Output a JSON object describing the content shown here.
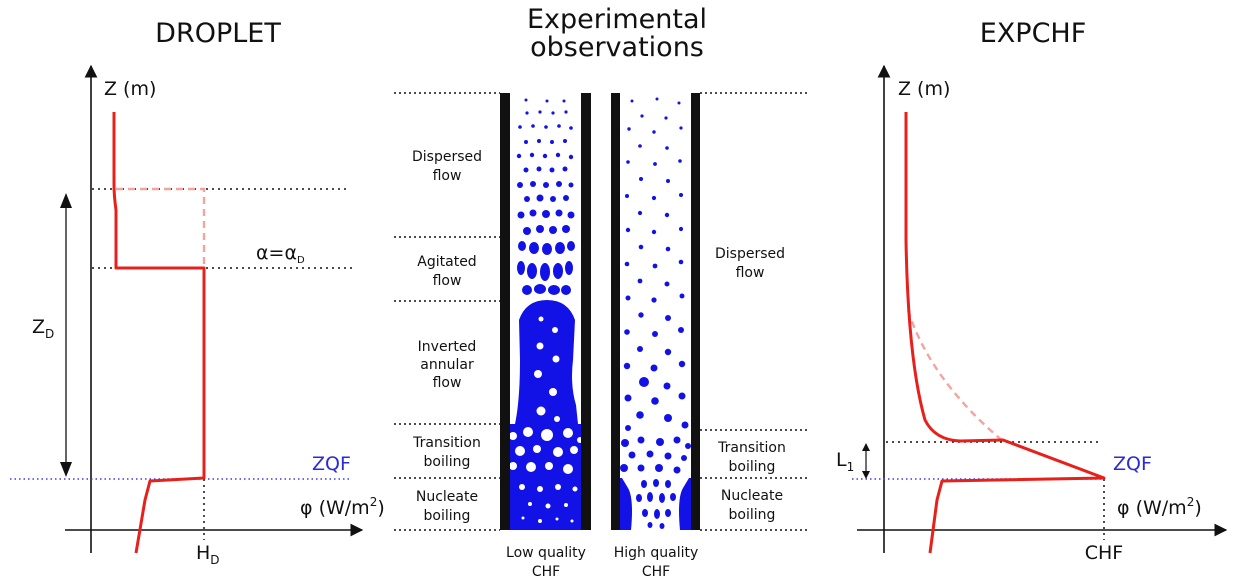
{
  "titles": {
    "droplet": "DROPLET",
    "experimental_line1": "Experimental",
    "experimental_line2": "observations",
    "expchf": "EXPCHF"
  },
  "droplet_panel": {
    "z_axis": "Z (m)",
    "phi_axis": "φ (W/m²)",
    "phi_axis_base": "φ (W/m",
    "phi_axis_sup": "2",
    "phi_axis_end": ")",
    "zd_main": "Z",
    "zd_sub": "D",
    "hd_main": "H",
    "hd_sub": "D",
    "zqf": "ZQF",
    "alpha_label": "α=α",
    "alpha_sub": "D"
  },
  "experimental_panel": {
    "left_labels": [
      {
        "l1": "Dispersed",
        "l2": "flow",
        "l3": ""
      },
      {
        "l1": "Agitated",
        "l2": "flow",
        "l3": ""
      },
      {
        "l1": "Inverted",
        "l2": "annular",
        "l3": "flow"
      },
      {
        "l1": "Transition",
        "l2": "boiling",
        "l3": ""
      },
      {
        "l1": "Nucleate",
        "l2": "boiling",
        "l3": ""
      }
    ],
    "right_labels": [
      {
        "l1": "Dispersed",
        "l2": "flow"
      },
      {
        "l1": "Transition",
        "l2": "boiling"
      },
      {
        "l1": "Nucleate",
        "l2": "boiling"
      }
    ],
    "low_quality_l1": "Low quality",
    "low_quality_l2": "CHF",
    "high_quality_l1": "High quality",
    "high_quality_l2": "CHF"
  },
  "expchf_panel": {
    "z_axis": "Z (m)",
    "phi_axis_base": "φ (W/m",
    "phi_axis_sup": "2",
    "phi_axis_end": ")",
    "l1_main": "L",
    "l1_sub": "1",
    "zqf": "ZQF",
    "chf": "CHF"
  },
  "colors": {
    "curve_red": "#e8201c",
    "curve_red_faded": "#f2a49f",
    "liquid_blue": "#1212e6",
    "zqf_blue": "#2b2bd6"
  }
}
